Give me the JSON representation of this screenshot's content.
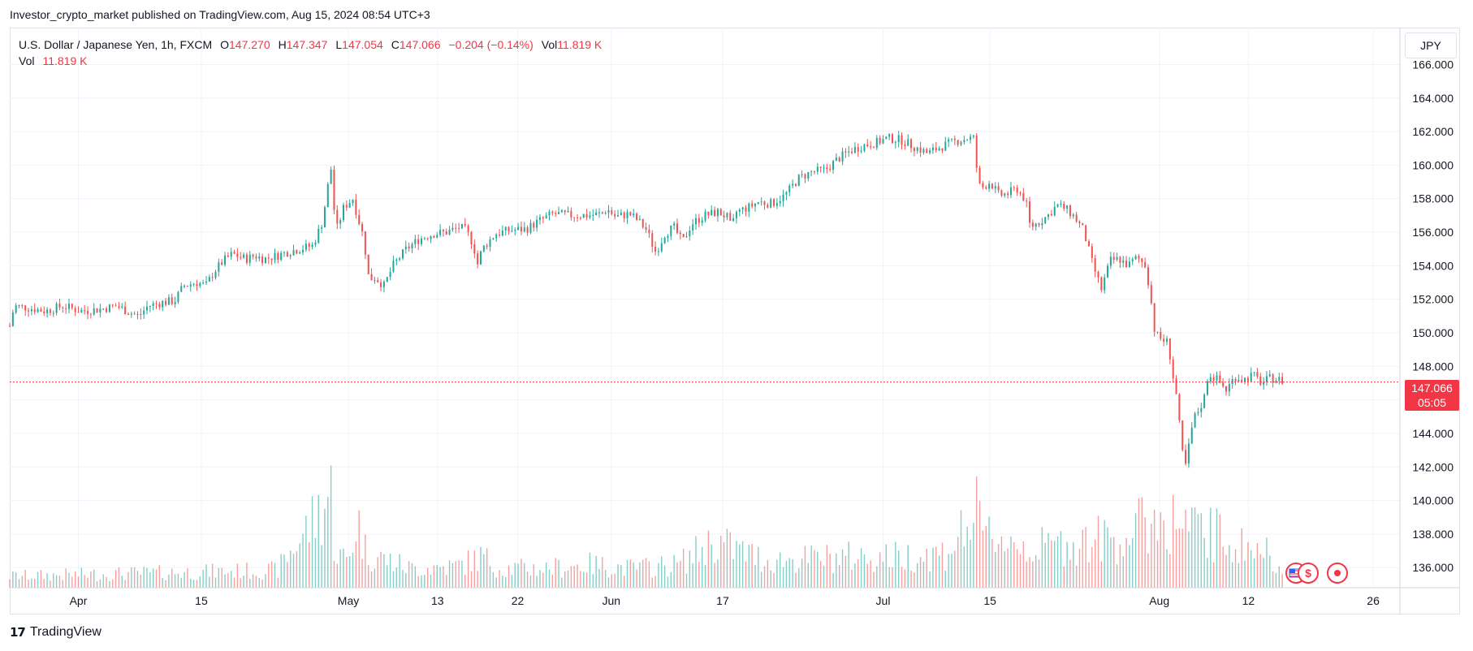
{
  "header": {
    "published_by": "Investor_crypto_market published on TradingView.com, Aug 15, 2024 08:54 UTC+3"
  },
  "legend": {
    "symbol": "U.S. Dollar / Japanese Yen, 1h, FXCM",
    "open_label": "O",
    "open": "147.270",
    "high_label": "H",
    "high": "147.347",
    "low_label": "L",
    "low": "147.054",
    "close_label": "C",
    "close": "147.066",
    "change": "−0.204 (−0.14%)",
    "vol_label": "Vol",
    "vol": "11.819 K",
    "vol_row_label": "Vol",
    "vol_row_value": "11.819 K"
  },
  "currency_button": "JPY",
  "price_tag": {
    "price": "147.066",
    "countdown": "05:05"
  },
  "footer": {
    "brand": "TradingView"
  },
  "colors": {
    "up": "#26a69a",
    "down": "#ef5350",
    "price_line": "#f23645",
    "grid": "#f0f3fa"
  },
  "chart_data": {
    "type": "candlestick",
    "title": "U.S. Dollar / Japanese Yen, 1h, FXCM",
    "xlabel": "",
    "ylabel": "",
    "ylim": [
      134.8,
      168.2
    ],
    "yticks": [
      "136.000",
      "138.000",
      "140.000",
      "142.000",
      "144.000",
      "146.000",
      "148.000",
      "150.000",
      "152.000",
      "154.000",
      "156.000",
      "158.000",
      "160.000",
      "162.000",
      "164.000",
      "166.000"
    ],
    "xticks": [
      {
        "label": "Apr",
        "day": 7.7
      },
      {
        "label": "15",
        "day": 21.5
      },
      {
        "label": "May",
        "day": 38
      },
      {
        "label": "13",
        "day": 48
      },
      {
        "label": "22",
        "day": 57
      },
      {
        "label": "Jun",
        "day": 67.5
      },
      {
        "label": "17",
        "day": 80
      },
      {
        "label": "Jul",
        "day": 98
      },
      {
        "label": "15",
        "day": 110
      },
      {
        "label": "Aug",
        "day": 129
      },
      {
        "label": "12",
        "day": 139
      },
      {
        "label": "26",
        "day": 153
      },
      {
        "label": "",
        "day": 0
      }
    ],
    "x_range_days": [
      0,
      156
    ],
    "price_line": 147.066,
    "series": [
      {
        "name": "price",
        "points": [
          [
            0,
            150.4
          ],
          [
            0.5,
            151.6
          ],
          [
            2,
            151.5
          ],
          [
            4,
            151.3
          ],
          [
            6,
            151.6
          ],
          [
            8,
            151.3
          ],
          [
            10,
            151.4
          ],
          [
            12,
            151.6
          ],
          [
            13.5,
            151.2
          ],
          [
            14.5,
            151.0
          ],
          [
            15.5,
            151.6
          ],
          [
            17,
            151.8
          ],
          [
            18.5,
            151.9
          ],
          [
            19.5,
            152.8
          ],
          [
            21,
            153.0
          ],
          [
            22,
            152.8
          ],
          [
            23,
            153.7
          ],
          [
            24,
            154.3
          ],
          [
            25,
            154.7
          ],
          [
            26.5,
            154.4
          ],
          [
            27.5,
            154.6
          ],
          [
            28.5,
            154.4
          ],
          [
            30,
            154.6
          ],
          [
            31,
            154.8
          ],
          [
            32.5,
            155.0
          ],
          [
            34,
            155.2
          ],
          [
            35,
            156.5
          ],
          [
            35.6,
            158.3
          ],
          [
            36,
            160.1
          ],
          [
            36.6,
            156.0
          ],
          [
            37.5,
            157.5
          ],
          [
            38.5,
            158.0
          ],
          [
            39,
            157.0
          ],
          [
            39.7,
            155.7
          ],
          [
            40.3,
            153.2
          ],
          [
            41,
            153.3
          ],
          [
            42,
            152.8
          ],
          [
            43,
            154.0
          ],
          [
            44.5,
            155.0
          ],
          [
            46,
            155.6
          ],
          [
            47.5,
            155.9
          ],
          [
            49,
            156.0
          ],
          [
            50.5,
            156.3
          ],
          [
            51.2,
            156.1
          ],
          [
            52,
            155.3
          ],
          [
            52.5,
            154.1
          ],
          [
            53,
            155.0
          ],
          [
            54.5,
            155.9
          ],
          [
            56,
            156.1
          ],
          [
            58,
            156.2
          ],
          [
            59.5,
            156.7
          ],
          [
            61,
            157.1
          ],
          [
            63,
            157.0
          ],
          [
            65,
            157.0
          ],
          [
            66.5,
            157.1
          ],
          [
            67,
            157.4
          ],
          [
            68,
            156.9
          ],
          [
            69.5,
            157.1
          ],
          [
            70.5,
            156.7
          ],
          [
            71.5,
            156.1
          ],
          [
            72,
            155.4
          ],
          [
            72.5,
            154.8
          ],
          [
            73.5,
            155.9
          ],
          [
            74.5,
            156.3
          ],
          [
            75.5,
            155.4
          ],
          [
            76.5,
            156.5
          ],
          [
            78,
            157.0
          ],
          [
            79.5,
            157.2
          ],
          [
            80.5,
            156.9
          ],
          [
            81,
            156.2
          ],
          [
            81.5,
            157.2
          ],
          [
            83,
            157.5
          ],
          [
            84,
            157.8
          ],
          [
            85.5,
            157.7
          ],
          [
            87,
            158.2
          ],
          [
            88.5,
            159.2
          ],
          [
            90,
            159.6
          ],
          [
            91.5,
            159.7
          ],
          [
            93,
            160.4
          ],
          [
            94.5,
            160.9
          ],
          [
            96,
            161.2
          ],
          [
            97,
            161.3
          ],
          [
            98.5,
            161.6
          ],
          [
            100,
            161.5
          ],
          [
            101.5,
            161.1
          ],
          [
            103,
            160.7
          ],
          [
            104.5,
            161.1
          ],
          [
            106,
            161.4
          ],
          [
            107.5,
            161.6
          ],
          [
            108.3,
            161.6
          ],
          [
            108.6,
            159.0
          ],
          [
            109,
            158.6
          ],
          [
            110,
            159.0
          ],
          [
            111,
            158.2
          ],
          [
            112,
            158.3
          ],
          [
            113,
            158.6
          ],
          [
            114,
            157.9
          ],
          [
            114.5,
            156.3
          ],
          [
            115.5,
            156.6
          ],
          [
            116.5,
            157.0
          ],
          [
            117.5,
            157.6
          ],
          [
            118.5,
            157.4
          ],
          [
            119.5,
            156.9
          ],
          [
            120.5,
            156.1
          ],
          [
            121.5,
            154.1
          ],
          [
            122.5,
            152.6
          ],
          [
            123.5,
            154.3
          ],
          [
            124.5,
            154.4
          ],
          [
            125.5,
            154.0
          ],
          [
            126.5,
            154.5
          ],
          [
            127.5,
            154.0
          ],
          [
            128,
            152.2
          ],
          [
            128.5,
            150.0
          ],
          [
            129,
            149.7
          ],
          [
            130,
            149.4
          ],
          [
            130.5,
            147.5
          ],
          [
            131,
            146.0
          ],
          [
            131.5,
            143.0
          ],
          [
            132,
            142.0
          ],
          [
            132.5,
            144.0
          ],
          [
            133,
            145.0
          ],
          [
            134,
            146.0
          ],
          [
            134.5,
            147.6
          ],
          [
            135.5,
            147.2
          ],
          [
            136.5,
            146.6
          ],
          [
            137.5,
            147.4
          ],
          [
            138.5,
            147.2
          ],
          [
            139.5,
            147.5
          ],
          [
            140.5,
            147.0
          ],
          [
            141.5,
            147.3
          ],
          [
            142.5,
            147.2
          ],
          [
            143,
            147.07
          ]
        ]
      },
      {
        "name": "volume",
        "points": [
          [
            0,
            3
          ],
          [
            10,
            3.5
          ],
          [
            20,
            4
          ],
          [
            30,
            4.5
          ],
          [
            35.5,
            22
          ],
          [
            36,
            26
          ],
          [
            36.5,
            9
          ],
          [
            38,
            7
          ],
          [
            39,
            18
          ],
          [
            40,
            9
          ],
          [
            45,
            5
          ],
          [
            50,
            5.5
          ],
          [
            53,
            8
          ],
          [
            55,
            5
          ],
          [
            60,
            5
          ],
          [
            65,
            6
          ],
          [
            70,
            5
          ],
          [
            75,
            6
          ],
          [
            79,
            12
          ],
          [
            85,
            7
          ],
          [
            95,
            8
          ],
          [
            100,
            8
          ],
          [
            105,
            9
          ],
          [
            108.5,
            19
          ],
          [
            109,
            13
          ],
          [
            110,
            14
          ],
          [
            115,
            10
          ],
          [
            120,
            12
          ],
          [
            125,
            13
          ],
          [
            128.5,
            18
          ],
          [
            131,
            17
          ],
          [
            132.5,
            15
          ],
          [
            135,
            14
          ],
          [
            138,
            11
          ],
          [
            141,
            9
          ],
          [
            143,
            7
          ]
        ]
      }
    ]
  }
}
